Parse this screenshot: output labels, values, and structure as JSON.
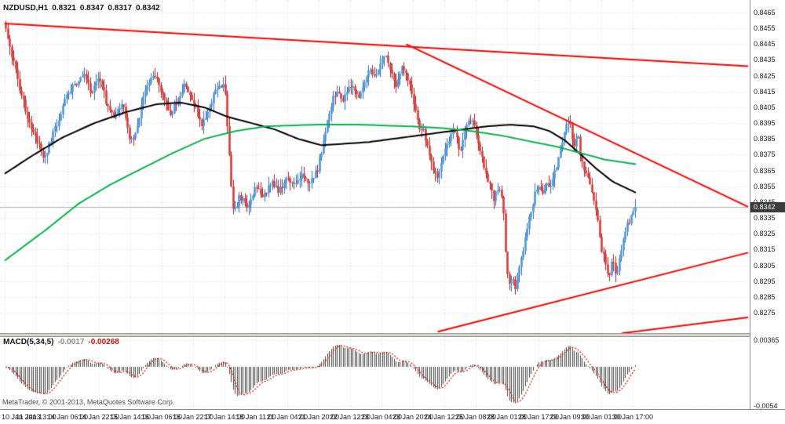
{
  "header": {
    "symbol": "NZDUSD,H1",
    "open": "0.8321",
    "high": "0.8347",
    "low": "0.8317",
    "close": "0.8342"
  },
  "macd_header": {
    "label": "MACD(5,34,5)",
    "macd_value": "-0.0017",
    "signal_value": "-0.00268"
  },
  "footer": {
    "copyright": "MetaTrader, © 2001-2013, MetaQuotes Software Corp."
  },
  "price_axis": {
    "labels": [
      "0.8465",
      "0.8455",
      "0.8445",
      "0.8435",
      "0.8425",
      "0.8415",
      "0.8405",
      "0.8395",
      "0.8385",
      "0.8375",
      "0.8365",
      "0.8355",
      "0.8345",
      "0.8335",
      "0.8325",
      "0.8315",
      "0.8305",
      "0.8295",
      "0.8285",
      "0.8275"
    ],
    "top_price": 0.8465,
    "bottom_price": 0.8275,
    "current_price": 0.8342,
    "current_price_label": "0.8342"
  },
  "time_axis": {
    "labels": [
      "10 Jan 2013",
      "11 Jan 13:00",
      "14 Jan 06:00",
      "14 Jan 22:00",
      "15 Jan 14:00",
      "16 Jan 06:00",
      "16 Jan 22:00",
      "17 Jan 14:00",
      "18 Jan 11:00",
      "21 Jan 04:00",
      "21 Jan 20:00",
      "22 Jan 12:00",
      "23 Jan 04:00",
      "23 Jan 20:00",
      "24 Jan 12:00",
      "25 Jan 08:00",
      "28 Jan 01:00",
      "28 Jan 17:00",
      "29 Jan 09:00",
      "30 Jan 01:00",
      "30 Jan 17:00"
    ]
  },
  "macd_axis": {
    "labels": [
      "0.00365",
      "-0.0054"
    ]
  },
  "colors": {
    "background": "#ffffff",
    "grid": "#d8d8d8",
    "bull": "#4f94d4",
    "bull_wick": "#2e6db0",
    "bear": "#d23b3b",
    "bear_wick": "#aa2222",
    "ma_black": "#000000",
    "ma_green": "#0ab14f",
    "trendline": "#ff0000",
    "histogram": "#444444",
    "signal": "#d01f1f",
    "current_line": "#b0b0b0",
    "current_price_bg": "#3c3c3c",
    "current_price_fg": "#ffffff"
  },
  "chart_data": {
    "type": "candlestick",
    "symbol": "NZDUSD",
    "timeframe": "H1",
    "title": "NZDUSD,H1 0.8321 0.8347 0.8317 0.8342",
    "ohlc_header": {
      "open": 0.8321,
      "high": 0.8347,
      "low": 0.8317,
      "close": 0.8342
    },
    "y_range": [
      0.8275,
      0.8465
    ],
    "bars": 322,
    "grid": "dotted",
    "price_path": [
      [
        0.0,
        0.8455
      ],
      [
        0.011,
        0.8435
      ],
      [
        0.024,
        0.8413
      ],
      [
        0.042,
        0.839
      ],
      [
        0.061,
        0.8372
      ],
      [
        0.073,
        0.8386
      ],
      [
        0.086,
        0.84
      ],
      [
        0.098,
        0.8414
      ],
      [
        0.111,
        0.842
      ],
      [
        0.123,
        0.8428
      ],
      [
        0.136,
        0.8414
      ],
      [
        0.148,
        0.8425
      ],
      [
        0.16,
        0.8407
      ],
      [
        0.173,
        0.8398
      ],
      [
        0.185,
        0.841
      ],
      [
        0.198,
        0.8382
      ],
      [
        0.21,
        0.8396
      ],
      [
        0.223,
        0.8418
      ],
      [
        0.235,
        0.8428
      ],
      [
        0.248,
        0.8414
      ],
      [
        0.26,
        0.84
      ],
      [
        0.272,
        0.8408
      ],
      [
        0.285,
        0.842
      ],
      [
        0.297,
        0.841
      ],
      [
        0.31,
        0.8394
      ],
      [
        0.322,
        0.8404
      ],
      [
        0.335,
        0.8417
      ],
      [
        0.348,
        0.8421
      ],
      [
        0.356,
        0.8368
      ],
      [
        0.362,
        0.8338
      ],
      [
        0.372,
        0.8349
      ],
      [
        0.384,
        0.8341
      ],
      [
        0.397,
        0.8356
      ],
      [
        0.409,
        0.8347
      ],
      [
        0.422,
        0.8359
      ],
      [
        0.434,
        0.8351
      ],
      [
        0.447,
        0.8361
      ],
      [
        0.459,
        0.8354
      ],
      [
        0.471,
        0.8363
      ],
      [
        0.484,
        0.8356
      ],
      [
        0.496,
        0.8367
      ],
      [
        0.506,
        0.8386
      ],
      [
        0.516,
        0.8406
      ],
      [
        0.526,
        0.8416
      ],
      [
        0.535,
        0.8407
      ],
      [
        0.546,
        0.8421
      ],
      [
        0.558,
        0.8411
      ],
      [
        0.571,
        0.8419
      ],
      [
        0.578,
        0.8429
      ],
      [
        0.588,
        0.8424
      ],
      [
        0.602,
        0.8438
      ],
      [
        0.612,
        0.8428
      ],
      [
        0.621,
        0.8419
      ],
      [
        0.629,
        0.8432
      ],
      [
        0.638,
        0.8424
      ],
      [
        0.647,
        0.841
      ],
      [
        0.655,
        0.8394
      ],
      [
        0.665,
        0.8389
      ],
      [
        0.675,
        0.8371
      ],
      [
        0.684,
        0.8359
      ],
      [
        0.693,
        0.8371
      ],
      [
        0.703,
        0.8383
      ],
      [
        0.713,
        0.8391
      ],
      [
        0.721,
        0.8377
      ],
      [
        0.73,
        0.8392
      ],
      [
        0.74,
        0.8398
      ],
      [
        0.75,
        0.8384
      ],
      [
        0.759,
        0.8369
      ],
      [
        0.767,
        0.8359
      ],
      [
        0.775,
        0.8347
      ],
      [
        0.784,
        0.8354
      ],
      [
        0.79,
        0.8348
      ],
      [
        0.795,
        0.8308
      ],
      [
        0.8,
        0.829
      ],
      [
        0.805,
        0.83
      ],
      [
        0.81,
        0.8289
      ],
      [
        0.815,
        0.8303
      ],
      [
        0.821,
        0.8311
      ],
      [
        0.827,
        0.8326
      ],
      [
        0.833,
        0.8336
      ],
      [
        0.839,
        0.8346
      ],
      [
        0.846,
        0.8358
      ],
      [
        0.852,
        0.8349
      ],
      [
        0.858,
        0.836
      ],
      [
        0.864,
        0.8354
      ],
      [
        0.871,
        0.8363
      ],
      [
        0.877,
        0.8371
      ],
      [
        0.883,
        0.8381
      ],
      [
        0.889,
        0.8391
      ],
      [
        0.896,
        0.8398
      ],
      [
        0.899,
        0.8387
      ],
      [
        0.904,
        0.8379
      ],
      [
        0.909,
        0.8388
      ],
      [
        0.914,
        0.8374
      ],
      [
        0.92,
        0.8364
      ],
      [
        0.927,
        0.8357
      ],
      [
        0.933,
        0.8347
      ],
      [
        0.939,
        0.8339
      ],
      [
        0.945,
        0.8318
      ],
      [
        0.951,
        0.8309
      ],
      [
        0.958,
        0.8298
      ],
      [
        0.964,
        0.8307
      ],
      [
        0.97,
        0.8299
      ],
      [
        0.976,
        0.8313
      ],
      [
        0.982,
        0.8321
      ],
      [
        0.988,
        0.8331
      ],
      [
        1.0,
        0.8342
      ]
    ],
    "ma_black": [
      [
        0.0,
        0.8363
      ],
      [
        0.042,
        0.8374
      ],
      [
        0.092,
        0.8386
      ],
      [
        0.142,
        0.8395
      ],
      [
        0.192,
        0.8402
      ],
      [
        0.241,
        0.8407
      ],
      [
        0.279,
        0.8408
      ],
      [
        0.316,
        0.8405
      ],
      [
        0.353,
        0.8399
      ],
      [
        0.391,
        0.8395
      ],
      [
        0.428,
        0.8391
      ],
      [
        0.465,
        0.8385
      ],
      [
        0.502,
        0.8381
      ],
      [
        0.54,
        0.8382
      ],
      [
        0.577,
        0.8383
      ],
      [
        0.614,
        0.8385
      ],
      [
        0.652,
        0.8387
      ],
      [
        0.689,
        0.8389
      ],
      [
        0.726,
        0.8391
      ],
      [
        0.764,
        0.8393
      ],
      [
        0.801,
        0.8394
      ],
      [
        0.838,
        0.8393
      ],
      [
        0.863,
        0.839
      ],
      [
        0.888,
        0.8384
      ],
      [
        0.913,
        0.8375
      ],
      [
        0.938,
        0.8366
      ],
      [
        0.963,
        0.8358
      ],
      [
        1.0,
        0.8351
      ]
    ],
    "ma_green": [
      [
        0.0,
        0.8308
      ],
      [
        0.067,
        0.8328
      ],
      [
        0.117,
        0.8344
      ],
      [
        0.167,
        0.8356
      ],
      [
        0.216,
        0.8366
      ],
      [
        0.266,
        0.8376
      ],
      [
        0.316,
        0.8385
      ],
      [
        0.366,
        0.839
      ],
      [
        0.415,
        0.8393
      ],
      [
        0.49,
        0.8394
      ],
      [
        0.565,
        0.8394
      ],
      [
        0.639,
        0.8393
      ],
      [
        0.689,
        0.8392
      ],
      [
        0.739,
        0.839
      ],
      [
        0.789,
        0.8387
      ],
      [
        0.838,
        0.8383
      ],
      [
        0.876,
        0.838
      ],
      [
        0.913,
        0.8376
      ],
      [
        0.95,
        0.8372
      ],
      [
        1.0,
        0.8369
      ]
    ],
    "trendlines": [
      {
        "x1": 0.006,
        "p1": 0.8458,
        "x2": 1.0,
        "p2": 0.8431
      },
      {
        "x1": 0.543,
        "p1": 0.8445,
        "x2": 1.0,
        "p2": 0.8342
      },
      {
        "x1": 0.585,
        "p1": 0.8263,
        "x2": 1.0,
        "p2": 0.8313
      },
      {
        "x1": 0.831,
        "p1": 0.8262,
        "x2": 1.0,
        "p2": 0.8272
      }
    ],
    "macd": {
      "fast": 5,
      "slow": 34,
      "signal": 5,
      "last_macd": -0.0017,
      "last_signal": -0.00268,
      "scale_max": 0.00365,
      "scale_min": -0.0054
    }
  }
}
